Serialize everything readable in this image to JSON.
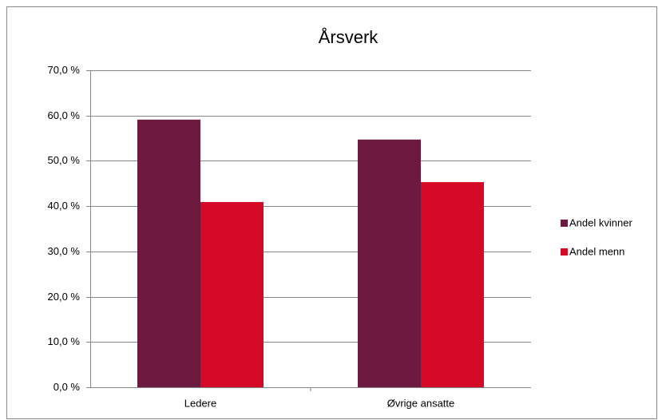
{
  "chart_data": {
    "type": "bar",
    "title": "Årsverk",
    "categories": [
      "Ledere",
      "Øvrige ansatte"
    ],
    "series": [
      {
        "name": "Andel kvinner",
        "color": "#6d1a41",
        "values": [
          59.1,
          54.7
        ]
      },
      {
        "name": "Andel menn",
        "color": "#d50a26",
        "values": [
          40.9,
          45.3
        ]
      }
    ],
    "ylim": [
      0,
      70
    ],
    "yticks": [
      {
        "value": 0,
        "label": "0,0 %"
      },
      {
        "value": 10,
        "label": "10,0 %"
      },
      {
        "value": 20,
        "label": "20,0 %"
      },
      {
        "value": 30,
        "label": "30,0 %"
      },
      {
        "value": 40,
        "label": "40,0 %"
      },
      {
        "value": 50,
        "label": "50,0 %"
      },
      {
        "value": 60,
        "label": "60,0 %"
      },
      {
        "value": 70,
        "label": "70,0 %"
      }
    ],
    "grid": true,
    "legend": "right"
  }
}
